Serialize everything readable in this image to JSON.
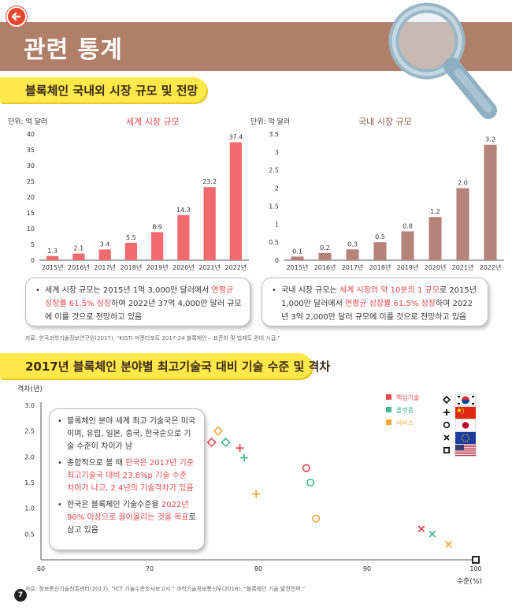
{
  "header": {
    "title": "관련 통계",
    "back_icon": "back-arrow-icon"
  },
  "section1": {
    "title": "블록체인 국내외 시장 규모 및 전망"
  },
  "section2": {
    "title": "2017년 블록체인 분야별 최고기술국 대비 기술 수준 및 격차"
  },
  "colors": {
    "world_bar": "#f06a6e",
    "domestic_bar": "#b5837a",
    "core": "#e8474f",
    "platform": "#46b88c",
    "service": "#f5a636",
    "highlight": "#e8474f"
  },
  "chart_data": [
    {
      "type": "bar",
      "title": "세계 시장 규모",
      "unit_label": "단위: 억 달러",
      "categories": [
        "2015년",
        "2016년",
        "2017년",
        "2018년",
        "2019년",
        "2020년",
        "2021년",
        "2022년"
      ],
      "values": [
        1.3,
        2.1,
        3.4,
        5.5,
        8.9,
        14.3,
        23.2,
        37.4
      ],
      "value_labels": [
        "1.3",
        "2.1",
        "3.4",
        "5.5",
        "8.9",
        "14.3",
        "23.2",
        "37.4"
      ],
      "ylim": [
        0,
        40
      ],
      "yticks": [
        "0",
        "5",
        "10",
        "15",
        "20",
        "25",
        "30",
        "35",
        "40"
      ],
      "ytick_values": [
        0,
        5,
        10,
        15,
        20,
        25,
        30,
        35,
        40
      ]
    },
    {
      "type": "bar",
      "title": "국내 시장 규모",
      "unit_label": "단위: 억 달러",
      "categories": [
        "2015년",
        "2016년",
        "2017년",
        "2018년",
        "2019년",
        "2020년",
        "2021년",
        "2022년"
      ],
      "values": [
        0.1,
        0.2,
        0.3,
        0.5,
        0.8,
        1.2,
        2.0,
        3.2
      ],
      "value_labels": [
        "0.1",
        "0.2",
        "0.3",
        "0.5",
        "0.8",
        "1.2",
        "2.0",
        "3.2"
      ],
      "ylim": [
        0,
        3.5
      ],
      "yticks": [
        "0",
        "0.5",
        "1",
        "1.5",
        "2",
        "2.5",
        "3",
        "3.5"
      ],
      "ytick_values": [
        0,
        0.5,
        1,
        1.5,
        2,
        2.5,
        3,
        3.5
      ]
    },
    {
      "type": "scatter",
      "ylabel": "격차(년)",
      "xlabel": "수준(%)",
      "xlim": [
        60,
        100
      ],
      "ylim": [
        0,
        3
      ],
      "xticks": [
        "60",
        "70",
        "80",
        "90",
        "100"
      ],
      "xtick_values": [
        60,
        70,
        80,
        90,
        100
      ],
      "yticks": [
        "0.5",
        "1.0",
        "1.5",
        "2.0",
        "2.5",
        "3.0"
      ],
      "ytick_values": [
        0.5,
        1.0,
        1.5,
        2.0,
        2.5,
        3.0
      ],
      "legend_categories": [
        {
          "label": "핵심기술",
          "color": "#e8474f"
        },
        {
          "label": "플랫폼",
          "color": "#46b88c"
        },
        {
          "label": "서비스",
          "color": "#f5a636"
        }
      ],
      "legend_countries": [
        {
          "marker": "diamond",
          "flag": "korea-flag-icon"
        },
        {
          "marker": "plus",
          "flag": "china-flag-icon"
        },
        {
          "marker": "circle",
          "flag": "japan-flag-icon"
        },
        {
          "marker": "x",
          "flag": "eu-flag-icon"
        },
        {
          "marker": "square",
          "flag": "usa-flag-icon"
        }
      ],
      "points": [
        {
          "country": "korea",
          "marker": "diamond",
          "category": "핵심기술",
          "x": 75.7,
          "y": 2.28
        },
        {
          "country": "korea",
          "marker": "diamond",
          "category": "서비스",
          "x": 76.3,
          "y": 2.5
        },
        {
          "country": "korea",
          "marker": "diamond",
          "category": "플랫폼",
          "x": 77.0,
          "y": 2.28
        },
        {
          "country": "china",
          "marker": "plus",
          "category": "핵심기술",
          "x": 78.3,
          "y": 2.17
        },
        {
          "country": "china",
          "marker": "plus",
          "category": "플랫폼",
          "x": 78.7,
          "y": 1.98
        },
        {
          "country": "china",
          "marker": "plus",
          "category": "서비스",
          "x": 79.8,
          "y": 1.28
        },
        {
          "country": "japan",
          "marker": "circle",
          "category": "핵심기술",
          "x": 84.4,
          "y": 1.78
        },
        {
          "country": "japan",
          "marker": "circle",
          "category": "플랫폼",
          "x": 84.8,
          "y": 1.5
        },
        {
          "country": "japan",
          "marker": "circle",
          "category": "서비스",
          "x": 85.3,
          "y": 0.8
        },
        {
          "country": "eu",
          "marker": "x",
          "category": "핵심기술",
          "x": 95.0,
          "y": 0.6
        },
        {
          "country": "eu",
          "marker": "x",
          "category": "플랫폼",
          "x": 96.0,
          "y": 0.5
        },
        {
          "country": "eu",
          "marker": "x",
          "category": "서비스",
          "x": 97.5,
          "y": 0.3
        },
        {
          "country": "usa",
          "marker": "square",
          "category": "all",
          "x": 100.0,
          "y": 0.0
        }
      ]
    }
  ],
  "notes": {
    "world": {
      "prefix": "세계 시장 규모는 2015년 1억 3,000만 달러에서 ",
      "highlight": "연평균 성장률 61.5% 성장",
      "suffix": "하여 2022년 37억 4,000만 달러 규모에 이를 것으로 전망하고 있음"
    },
    "domestic": {
      "prefix": "국내 시장 규모는 ",
      "highlight1": "세계 시장의 약 10분의 1 규모",
      "middle": "로 2015년 1,000만 달러에서 ",
      "highlight2": "연평균 성장률 61.5% 성장",
      "suffix": "하여 2022년 3억 2,000만 달러 규모에 이를 것으로 전망하고 있음"
    },
    "tech": {
      "item1": "블록체인 분야 세계 최고 기술국은 미국이며, 유럽, 일본, 중국, 한국순으로 기술 수준이 차이가 남",
      "item2_prefix": "종합적으로 볼 때 ",
      "item2_highlight": "한국은 2017년 기준 최고기술국 대비 23.6%p 기술 수준 차이가 나고, 2.4년의 기술격차가 있음",
      "item3_prefix": "한국은 블록체인 기술수준을 ",
      "item3_highlight": "2022년 90% 이상으로 끌어올리는 것을 목표",
      "item3_suffix": "로 삼고 있음"
    }
  },
  "sources": {
    "s1": "자료: 한국과학기술정보연구원(2017), \"KISTI 마켓리포트 2017-24 블록체인 – 표준화 및 법제도 완비 시급.\"",
    "s2": "자료: 정보통신기술진흥센터(2017), \"ICT 기술수준조사보고서.\" 과학기술정보통신부(2018), \"블록체인 기술 발전전략.\""
  },
  "page": {
    "number": "7"
  }
}
